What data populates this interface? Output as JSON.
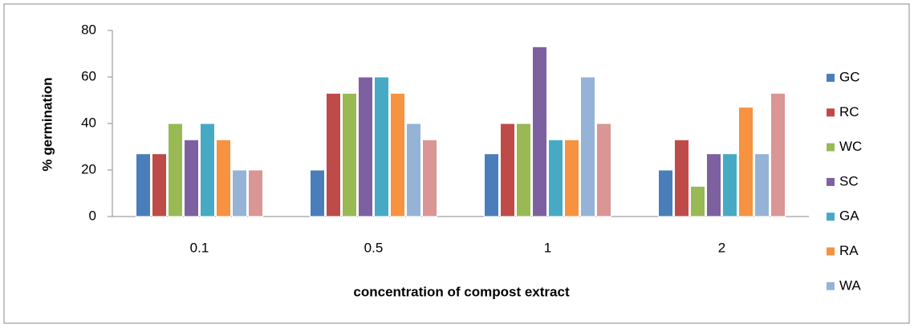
{
  "chart_data": {
    "type": "bar",
    "x_label": "concentration of compost extract",
    "y_label": "% germination",
    "categories": [
      "0.1",
      "0.5",
      "1",
      "2"
    ],
    "series": [
      {
        "name": "GC",
        "color": "#4a7ebb",
        "values": [
          27,
          20,
          27,
          20
        ]
      },
      {
        "name": "RC",
        "color": "#be4b48",
        "values": [
          27,
          53,
          40,
          33
        ]
      },
      {
        "name": "WC",
        "color": "#98b954",
        "values": [
          40,
          53,
          40,
          13
        ]
      },
      {
        "name": "SC",
        "color": "#7d60a0",
        "values": [
          33,
          60,
          73,
          27
        ]
      },
      {
        "name": "GA",
        "color": "#46aac5",
        "values": [
          40,
          60,
          33,
          27
        ]
      },
      {
        "name": "RA",
        "color": "#f69240",
        "values": [
          33,
          53,
          33,
          47
        ]
      },
      {
        "name": "WA",
        "color": "#95b3d7",
        "values": [
          20,
          40,
          60,
          27
        ]
      },
      {
        "color": "#d99694",
        "values": [
          20,
          33,
          40,
          53
        ]
      }
    ],
    "ylim": [
      0,
      80
    ],
    "yticks": [
      0,
      20,
      40,
      60,
      80
    ],
    "legend": "right"
  }
}
